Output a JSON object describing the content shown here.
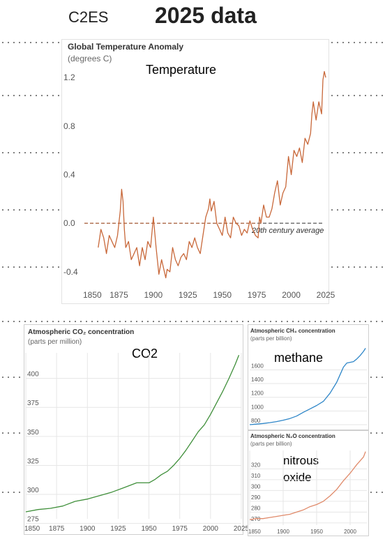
{
  "header": {
    "org": "C2ES",
    "headline": "2025 data"
  },
  "chart_data": [
    {
      "type": "line",
      "title": "Global Temperature Anomaly",
      "ylabel": "(degrees C)",
      "overlay_label": "Temperature",
      "xlim": [
        1850,
        2025
      ],
      "ylim": [
        -0.47,
        1.27
      ],
      "xticks": [
        "1850",
        "1875",
        "1900",
        "1925",
        "1950",
        "1975",
        "2000",
        "2025"
      ],
      "yticks": [
        "1.2",
        "0.8",
        "0.4",
        "0.0",
        "-0.4"
      ],
      "reference_line": {
        "y": 0.0,
        "label": "20th century average"
      },
      "series": [
        {
          "color": "#c8683a",
          "x": [
            1860,
            1862,
            1864,
            1866,
            1868,
            1870,
            1872,
            1874,
            1876,
            1877,
            1878,
            1879,
            1880,
            1882,
            1884,
            1886,
            1888,
            1890,
            1892,
            1894,
            1896,
            1898,
            1900,
            1902,
            1904,
            1906,
            1908,
            1909,
            1910,
            1912,
            1914,
            1916,
            1918,
            1920,
            1922,
            1924,
            1926,
            1928,
            1930,
            1932,
            1934,
            1936,
            1938,
            1940,
            1941,
            1942,
            1944,
            1946,
            1948,
            1950,
            1952,
            1954,
            1956,
            1958,
            1960,
            1962,
            1964,
            1966,
            1968,
            1970,
            1972,
            1974,
            1976,
            1977,
            1978,
            1980,
            1982,
            1984,
            1986,
            1988,
            1990,
            1992,
            1994,
            1996,
            1998,
            2000,
            2002,
            2004,
            2006,
            2008,
            2010,
            2012,
            2014,
            2015,
            2016,
            2018,
            2020,
            2022,
            2023,
            2024,
            2025
          ],
          "y": [
            -0.2,
            -0.05,
            -0.12,
            -0.25,
            -0.1,
            -0.15,
            -0.2,
            -0.1,
            0.1,
            0.28,
            0.18,
            -0.05,
            -0.2,
            -0.15,
            -0.3,
            -0.25,
            -0.2,
            -0.35,
            -0.2,
            -0.3,
            -0.15,
            -0.2,
            0.05,
            -0.2,
            -0.42,
            -0.3,
            -0.4,
            -0.45,
            -0.38,
            -0.4,
            -0.2,
            -0.3,
            -0.35,
            -0.28,
            -0.25,
            -0.3,
            -0.15,
            -0.2,
            -0.12,
            -0.2,
            -0.25,
            -0.1,
            0.05,
            0.12,
            0.2,
            0.1,
            0.18,
            0.0,
            -0.05,
            -0.1,
            0.05,
            -0.08,
            -0.12,
            0.05,
            0.0,
            -0.02,
            -0.1,
            -0.05,
            -0.08,
            0.02,
            -0.05,
            -0.1,
            -0.12,
            0.05,
            0.0,
            0.15,
            0.05,
            0.05,
            0.12,
            0.25,
            0.35,
            0.15,
            0.25,
            0.3,
            0.55,
            0.4,
            0.6,
            0.55,
            0.62,
            0.5,
            0.7,
            0.65,
            0.74,
            0.9,
            1.0,
            0.85,
            1.0,
            0.9,
            1.18,
            1.25,
            1.2
          ]
        }
      ]
    },
    {
      "type": "line",
      "title": "Atmospheric CO₂ concentration",
      "ylabel": "(parts per million)",
      "overlay_label": "CO2",
      "xlim": [
        1850,
        2025
      ],
      "ylim": [
        279,
        422
      ],
      "xticks": [
        "1850",
        "1875",
        "1900",
        "1925",
        "1950",
        "1975",
        "2000",
        "2025"
      ],
      "yticks": [
        "400",
        "375",
        "350",
        "325",
        "300",
        "275"
      ],
      "series": [
        {
          "color": "#3f8f3a",
          "x": [
            1850,
            1860,
            1870,
            1880,
            1890,
            1900,
            1910,
            1920,
            1930,
            1940,
            1945,
            1950,
            1955,
            1960,
            1965,
            1970,
            1975,
            1980,
            1985,
            1990,
            1995,
            2000,
            2005,
            2010,
            2015,
            2020,
            2023
          ],
          "y": [
            285,
            287,
            288,
            290,
            294,
            296,
            299,
            302,
            306,
            310,
            310,
            310,
            313,
            317,
            320,
            325,
            331,
            338,
            346,
            354,
            360,
            369,
            379,
            389,
            400,
            412,
            420
          ]
        }
      ]
    },
    {
      "type": "line",
      "title": "Atmospheric CH₄ concentration",
      "ylabel": "(parts per billion)",
      "overlay_label": "methane",
      "xlim": [
        1850,
        2025
      ],
      "ylim": [
        780,
        1950
      ],
      "yticks": [
        "1600",
        "1400",
        "1200",
        "1000",
        "800"
      ],
      "series": [
        {
          "color": "#2e86c8",
          "x": [
            1850,
            1860,
            1870,
            1880,
            1890,
            1900,
            1910,
            1920,
            1930,
            1940,
            1950,
            1960,
            1970,
            1980,
            1985,
            1990,
            1995,
            2000,
            2005,
            2010,
            2015,
            2020,
            2023
          ],
          "y": [
            800,
            808,
            818,
            830,
            845,
            865,
            890,
            925,
            980,
            1030,
            1080,
            1140,
            1260,
            1420,
            1530,
            1640,
            1700,
            1710,
            1720,
            1760,
            1810,
            1870,
            1915
          ]
        }
      ]
    },
    {
      "type": "line",
      "title": "Atmospheric N₂O concentration",
      "ylabel": "(parts per billion)",
      "overlay_label_lines": [
        "nitrous",
        "oxide"
      ],
      "xlim": [
        1850,
        2025
      ],
      "ylim": [
        268,
        337
      ],
      "xticks": [
        "1850",
        "1900",
        "1950",
        "2000"
      ],
      "yticks": [
        "320",
        "310",
        "300",
        "290",
        "280",
        "270"
      ],
      "series": [
        {
          "color": "#e08a6a",
          "x": [
            1850,
            1860,
            1870,
            1880,
            1890,
            1900,
            1910,
            1920,
            1930,
            1940,
            1950,
            1960,
            1970,
            1980,
            1990,
            2000,
            2010,
            2020,
            2023
          ],
          "y": [
            273,
            274,
            274,
            275,
            276,
            277,
            278,
            280,
            282,
            285,
            287,
            290,
            295,
            301,
            309,
            316,
            324,
            331,
            336
          ]
        }
      ]
    }
  ]
}
